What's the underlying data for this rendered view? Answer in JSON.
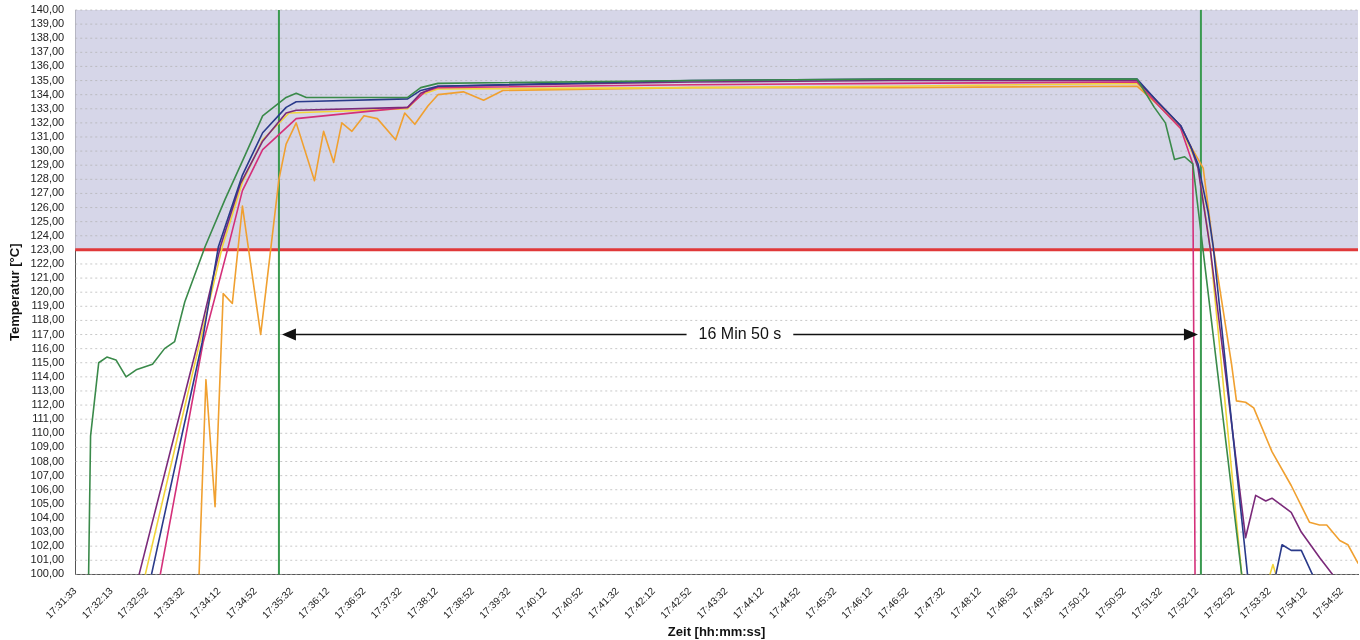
{
  "chart_data": {
    "type": "line",
    "xlabel": "Zeit [hh:mm:ss]",
    "ylabel": "Temperatur [°C]",
    "marker": "none",
    "line_style": "solid",
    "grid": "y",
    "legend": false,
    "xlim": [
      17.5258,
      17.9194
    ],
    "ylim": [
      100,
      140
    ],
    "xticks": [
      {
        "value": 17.525833,
        "label": "17:31:33"
      },
      {
        "value": 17.536944,
        "label": "17:32:13"
      },
      {
        "value": 17.547778,
        "label": "17:32:52"
      },
      {
        "value": 17.558889,
        "label": "17:33:32"
      },
      {
        "value": 17.57,
        "label": "17:34:12"
      },
      {
        "value": 17.581111,
        "label": "17:34:52"
      },
      {
        "value": 17.592222,
        "label": "17:35:32"
      },
      {
        "value": 17.603333,
        "label": "17:36:12"
      },
      {
        "value": 17.614444,
        "label": "17:36:52"
      },
      {
        "value": 17.625556,
        "label": "17:37:32"
      },
      {
        "value": 17.636667,
        "label": "17:38:12"
      },
      {
        "value": 17.647778,
        "label": "17:38:52"
      },
      {
        "value": 17.658889,
        "label": "17:39:32"
      },
      {
        "value": 17.67,
        "label": "17:40:12"
      },
      {
        "value": 17.681111,
        "label": "17:40:52"
      },
      {
        "value": 17.692222,
        "label": "17:41:32"
      },
      {
        "value": 17.703333,
        "label": "17:42:12"
      },
      {
        "value": 17.714444,
        "label": "17:42:52"
      },
      {
        "value": 17.725556,
        "label": "17:43:32"
      },
      {
        "value": 17.736667,
        "label": "17:44:12"
      },
      {
        "value": 17.747778,
        "label": "17:44:52"
      },
      {
        "value": 17.758889,
        "label": "17:45:32"
      },
      {
        "value": 17.77,
        "label": "17:46:12"
      },
      {
        "value": 17.781111,
        "label": "17:46:52"
      },
      {
        "value": 17.792222,
        "label": "17:47:32"
      },
      {
        "value": 17.803333,
        "label": "17:48:12"
      },
      {
        "value": 17.814444,
        "label": "17:48:52"
      },
      {
        "value": 17.825556,
        "label": "17:49:32"
      },
      {
        "value": 17.836667,
        "label": "17:50:12"
      },
      {
        "value": 17.847778,
        "label": "17:50:52"
      },
      {
        "value": 17.858889,
        "label": "17:51:32"
      },
      {
        "value": 17.87,
        "label": "17:52:12"
      },
      {
        "value": 17.881111,
        "label": "17:52:52"
      },
      {
        "value": 17.892222,
        "label": "17:53:32"
      },
      {
        "value": 17.903333,
        "label": "17:54:12"
      },
      {
        "value": 17.914444,
        "label": "17:54:52"
      }
    ],
    "yticks": [
      {
        "value": 100,
        "label": "100,00"
      },
      {
        "value": 101,
        "label": "101,00"
      },
      {
        "value": 102,
        "label": "102,00"
      },
      {
        "value": 103,
        "label": "103,00"
      },
      {
        "value": 104,
        "label": "104,00"
      },
      {
        "value": 105,
        "label": "105,00"
      },
      {
        "value": 106,
        "label": "106,00"
      },
      {
        "value": 107,
        "label": "107,00"
      },
      {
        "value": 108,
        "label": "108,00"
      },
      {
        "value": 109,
        "label": "109,00"
      },
      {
        "value": 110,
        "label": "110,00"
      },
      {
        "value": 111,
        "label": "111,00"
      },
      {
        "value": 112,
        "label": "112,00"
      },
      {
        "value": 113,
        "label": "113,00"
      },
      {
        "value": 114,
        "label": "114,00"
      },
      {
        "value": 115,
        "label": "115,00"
      },
      {
        "value": 116,
        "label": "116,00"
      },
      {
        "value": 117,
        "label": "117,00"
      },
      {
        "value": 118,
        "label": "118,00"
      },
      {
        "value": 119,
        "label": "119,00"
      },
      {
        "value": 120,
        "label": "120,00"
      },
      {
        "value": 121,
        "label": "121,00"
      },
      {
        "value": 122,
        "label": "122,00"
      },
      {
        "value": 123,
        "label": "123,00"
      },
      {
        "value": 124,
        "label": "124,00"
      },
      {
        "value": 125,
        "label": "125,00"
      },
      {
        "value": 126,
        "label": "126,00"
      },
      {
        "value": 127,
        "label": "127,00"
      },
      {
        "value": 128,
        "label": "128,00"
      },
      {
        "value": 129,
        "label": "129,00"
      },
      {
        "value": 130,
        "label": "130,00"
      },
      {
        "value": 131,
        "label": "131,00"
      },
      {
        "value": 132,
        "label": "132,00"
      },
      {
        "value": 133,
        "label": "133,00"
      },
      {
        "value": 134,
        "label": "134,00"
      },
      {
        "value": 135,
        "label": "135,00"
      },
      {
        "value": 136,
        "label": "136,00"
      },
      {
        "value": 137,
        "label": "137,00"
      },
      {
        "value": 138,
        "label": "138,00"
      },
      {
        "value": 139,
        "label": "139,00"
      },
      {
        "value": 140,
        "label": "140,00"
      }
    ],
    "bands": [
      {
        "axis": "y",
        "from": 123,
        "to": 140,
        "color": "#d6d6e8"
      }
    ],
    "ref_lines": [
      {
        "axis": "y",
        "value": 123,
        "color": "#e0393a"
      },
      {
        "axis": "x",
        "value": 17.5883,
        "color": "#3a9a50"
      },
      {
        "axis": "x",
        "value": 17.8712,
        "color": "#3a9a50"
      }
    ],
    "annotations": [
      "16 Min 50 s"
    ],
    "series": [
      {
        "color": "#3a8a4a",
        "x": [
          17.5299,
          17.5305,
          17.533,
          17.5355,
          17.5383,
          17.5414,
          17.5445,
          17.5495,
          17.5532,
          17.5563,
          17.5594,
          17.5656,
          17.5718,
          17.5781,
          17.5833,
          17.5905,
          17.5936,
          17.5967,
          17.6278,
          17.6318,
          17.6371,
          17.7149,
          17.777,
          17.8516,
          17.8569,
          17.8603,
          17.8631,
          17.8662,
          17.8687,
          17.8837
        ],
        "values": [
          100,
          109.8,
          115,
          115.4,
          115.2,
          114,
          114.5,
          114.9,
          116,
          116.5,
          119.3,
          123.2,
          126.6,
          129.8,
          132.5,
          133.8,
          134.1,
          133.8,
          133.8,
          134.5,
          134.8,
          135,
          135.1,
          135.1,
          133.1,
          132,
          129.4,
          129.6,
          129.1,
          100
        ]
      },
      {
        "color": "#2a3a8a",
        "x": [
          17.5492,
          17.5647,
          17.5697,
          17.5771,
          17.5833,
          17.5905,
          17.5936,
          17.6278,
          17.6318,
          17.6371,
          17.7149,
          17.777,
          17.8516,
          17.8579,
          17.865,
          17.8681,
          17.8703,
          17.8734,
          17.875,
          17.8855,
          17.89,
          17.8942,
          17.8961,
          17.8989,
          17.902,
          17.9054
        ],
        "values": [
          100,
          116.4,
          123.2,
          128.3,
          131.3,
          133.1,
          133.5,
          133.7,
          134.3,
          134.6,
          135,
          135.1,
          135.1,
          133.5,
          131.8,
          130.3,
          129.1,
          125.7,
          123.2,
          100,
          null,
          100,
          102.1,
          101.7,
          101.7,
          100
        ]
      },
      {
        "color": "#7b2a7a",
        "x": [
          17.5454,
          17.5634,
          17.5703,
          17.5765,
          17.5833,
          17.5905,
          17.5936,
          17.6278,
          17.6318,
          17.6371,
          17.7149,
          17.777,
          17.8516,
          17.8579,
          17.865,
          17.8681,
          17.8703,
          17.874,
          17.8849,
          17.888,
          17.8911,
          17.893,
          17.8989,
          17.902,
          17.9076,
          17.9116
        ],
        "values": [
          100,
          116.4,
          123.2,
          127.7,
          130.7,
          132.7,
          132.9,
          133.1,
          134.1,
          134.6,
          134.9,
          135,
          135,
          133.5,
          131.8,
          130.3,
          128.8,
          123.2,
          102.6,
          105.6,
          105.2,
          105.4,
          104.4,
          103,
          101.2,
          100
        ]
      },
      {
        "color": "#d4307a",
        "x": [
          17.5519,
          17.565,
          17.5725,
          17.5771,
          17.5833,
          17.5936,
          17.6278,
          17.6331,
          17.6371,
          17.7149,
          17.777,
          17.8516,
          17.8579,
          17.865,
          17.8687,
          17.8694
        ],
        "values": [
          100,
          116.4,
          123,
          127.2,
          130.1,
          132.3,
          133.1,
          134.2,
          134.5,
          134.7,
          134.8,
          134.9,
          133.3,
          131.6,
          129.1,
          100
        ]
      },
      {
        "color": "#f2d43a",
        "x": [
          17.5473,
          17.5709,
          17.5771,
          17.5833,
          17.5914,
          17.6278,
          17.6318,
          17.6371,
          17.7149,
          17.777,
          17.8516,
          17.8579,
          17.865,
          17.8703,
          17.874,
          17.8837,
          17.888,
          17.8924,
          17.8933,
          17.8942
        ],
        "values": [
          100,
          123.2,
          127.8,
          130.8,
          132.7,
          133,
          134,
          134.4,
          134.5,
          134.6,
          134.8,
          133.4,
          131.7,
          129,
          123.2,
          100,
          null,
          100,
          100.7,
          100
        ]
      },
      {
        "color": "#f0a030",
        "x": [
          17.5638,
          17.5659,
          17.5687,
          17.5712,
          17.574,
          17.5771,
          17.5827,
          17.5883,
          17.5905,
          17.5936,
          17.5992,
          17.602,
          17.6051,
          17.6076,
          17.6107,
          17.6144,
          17.6185,
          17.6241,
          17.6269,
          17.63,
          17.634,
          17.6371,
          17.6449,
          17.6511,
          17.657,
          17.7149,
          17.777,
          17.8516,
          17.8579,
          17.865,
          17.8719,
          17.875,
          17.8806,
          17.8821,
          17.8849,
          17.8874,
          17.893,
          17.8989,
          17.9045,
          17.9076,
          17.9098,
          17.9138,
          17.9163,
          17.9194
        ],
        "values": [
          100,
          113.8,
          104.8,
          119.9,
          119.2,
          126.1,
          117,
          128,
          130.5,
          132,
          127.9,
          131.4,
          129.2,
          132,
          131.4,
          132.5,
          132.3,
          130.8,
          132.7,
          131.9,
          133.2,
          134,
          134.2,
          133.6,
          134.3,
          134.5,
          134.5,
          134.6,
          133.3,
          131.6,
          128.8,
          123.2,
          114.9,
          112.3,
          112.2,
          111.8,
          108.7,
          106.3,
          103.7,
          103.5,
          103.5,
          102.4,
          102.1,
          100.8
        ]
      }
    ]
  }
}
